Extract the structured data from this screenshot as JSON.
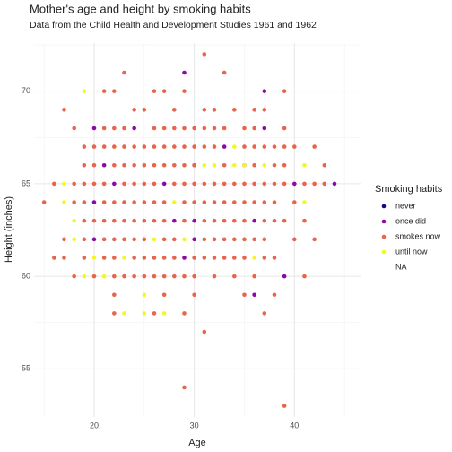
{
  "chart_data": {
    "type": "scatter",
    "title": "Mother's age and height by smoking habits",
    "subtitle": "Data from the Child Health and Development Studies 1961 and 1962",
    "x_label": "Age",
    "y_label": "Height (inches)",
    "legend_title": "Smoking habits",
    "legend_position": "right",
    "grid": true,
    "xlim": [
      14,
      46.6
    ],
    "ylim": [
      52.4,
      72.6
    ],
    "xticks": [
      20,
      30,
      40
    ],
    "yticks": [
      55,
      60,
      65,
      70
    ],
    "xminor_ticks": [
      15,
      25,
      35,
      45
    ],
    "yminor_ticks": [
      57.5,
      62.5,
      67.5,
      72.5
    ],
    "series": [
      {
        "name": "never",
        "color": "#0d0887",
        "x": [],
        "values": []
      },
      {
        "name": "once did",
        "color": "#8b0aa5",
        "x": [
          29,
          37,
          20,
          24,
          37,
          33,
          21,
          30,
          35,
          22,
          27,
          40,
          44,
          20,
          28,
          30,
          36,
          20,
          30,
          29,
          39,
          36
        ],
        "values": [
          71,
          70,
          68,
          68,
          68,
          67,
          66,
          66,
          66,
          65,
          65,
          65,
          65,
          64,
          63,
          63,
          63,
          62,
          62,
          61,
          60,
          59
        ]
      },
      {
        "name": "smokes now",
        "color": "#e8644a",
        "x": [
          31,
          23,
          33,
          21,
          22,
          26,
          27,
          29,
          39,
          17,
          24,
          25,
          28,
          31,
          32,
          34,
          36,
          37,
          18,
          21,
          22,
          23,
          26,
          27,
          28,
          29,
          30,
          31,
          32,
          33,
          35,
          36,
          39,
          19,
          20,
          21,
          22,
          23,
          24,
          25,
          26,
          27,
          28,
          29,
          30,
          31,
          32,
          35,
          36,
          37,
          38,
          39,
          40,
          42,
          19,
          20,
          22,
          23,
          24,
          25,
          26,
          27,
          28,
          29,
          30,
          33,
          36,
          38,
          39,
          43,
          16,
          18,
          19,
          20,
          21,
          23,
          24,
          25,
          26,
          28,
          29,
          30,
          31,
          32,
          33,
          34,
          35,
          36,
          37,
          38,
          39,
          41,
          42,
          43,
          15,
          18,
          19,
          21,
          22,
          23,
          24,
          25,
          26,
          27,
          29,
          30,
          31,
          32,
          33,
          34,
          35,
          36,
          37,
          38,
          40,
          19,
          20,
          21,
          22,
          23,
          24,
          25,
          26,
          27,
          29,
          31,
          32,
          33,
          34,
          35,
          37,
          38,
          39,
          41,
          17,
          19,
          21,
          22,
          23,
          24,
          25,
          27,
          28,
          31,
          32,
          33,
          34,
          35,
          36,
          37,
          40,
          42,
          16,
          17,
          19,
          21,
          22,
          24,
          25,
          26,
          27,
          28,
          30,
          31,
          32,
          33,
          34,
          35,
          37,
          38,
          18,
          20,
          22,
          23,
          24,
          25,
          26,
          27,
          28,
          29,
          30,
          32,
          34,
          36,
          41,
          22,
          27,
          30,
          35,
          38,
          22,
          26,
          29,
          37,
          31,
          29,
          39
        ],
        "values": [
          72,
          71,
          71,
          70,
          70,
          70,
          70,
          70,
          70,
          69,
          69,
          69,
          69,
          69,
          69,
          69,
          69,
          69,
          68,
          68,
          68,
          68,
          68,
          68,
          68,
          68,
          68,
          68,
          68,
          68,
          68,
          68,
          68,
          67,
          67,
          67,
          67,
          67,
          67,
          67,
          67,
          67,
          67,
          67,
          67,
          67,
          67,
          67,
          67,
          67,
          67,
          67,
          67,
          67,
          66,
          66,
          66,
          66,
          66,
          66,
          66,
          66,
          66,
          66,
          66,
          66,
          66,
          66,
          66,
          66,
          65,
          65,
          65,
          65,
          65,
          65,
          65,
          65,
          65,
          65,
          65,
          65,
          65,
          65,
          65,
          65,
          65,
          65,
          65,
          65,
          65,
          65,
          65,
          65,
          64,
          64,
          64,
          64,
          64,
          64,
          64,
          64,
          64,
          64,
          64,
          64,
          64,
          64,
          64,
          64,
          64,
          64,
          64,
          64,
          64,
          63,
          63,
          63,
          63,
          63,
          63,
          63,
          63,
          63,
          63,
          63,
          63,
          63,
          63,
          63,
          63,
          63,
          63,
          63,
          62,
          62,
          62,
          62,
          62,
          62,
          62,
          62,
          62,
          62,
          62,
          62,
          62,
          62,
          62,
          62,
          62,
          62,
          61,
          61,
          61,
          61,
          61,
          61,
          61,
          61,
          61,
          61,
          61,
          61,
          61,
          61,
          61,
          61,
          61,
          61,
          60,
          60,
          60,
          60,
          60,
          60,
          60,
          60,
          60,
          60,
          60,
          60,
          60,
          60,
          60,
          59,
          59,
          59,
          59,
          59,
          58,
          58,
          58,
          58,
          57,
          54,
          53
        ]
      },
      {
        "name": "until now",
        "color": "#f0f921",
        "x": [
          19,
          34,
          31,
          32,
          34,
          35,
          37,
          41,
          17,
          17,
          28,
          41,
          18,
          18,
          26,
          29,
          20,
          23,
          36,
          19,
          21,
          25,
          23,
          25,
          27
        ],
        "values": [
          70,
          67,
          66,
          66,
          66,
          66,
          66,
          66,
          65,
          64,
          64,
          64,
          63,
          62,
          62,
          62,
          61,
          61,
          61,
          60,
          60,
          59,
          58,
          58,
          58
        ]
      },
      {
        "name": "NA",
        "x": [],
        "values": []
      }
    ]
  }
}
